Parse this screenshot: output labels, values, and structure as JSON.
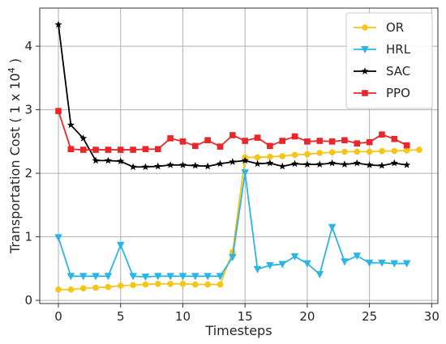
{
  "chart_data": {
    "type": "line",
    "xlabel": "Timesteps",
    "ylabel": "Transportation Cost ( 1 x 10^4 )",
    "ylabel_parts": {
      "main": "Transportation Cost ( 1 x 10",
      "exp": "4",
      "close": " )"
    },
    "xlim": [
      -1.5,
      30.5
    ],
    "ylim": [
      -0.05,
      4.6
    ],
    "xticks": [
      0,
      5,
      10,
      15,
      20,
      25,
      30
    ],
    "yticks": [
      0,
      1,
      2,
      3,
      4
    ],
    "grid": true,
    "legend_position": "top-right",
    "series": [
      {
        "name": "OR",
        "color": "#F5C518",
        "marker": "circle",
        "x": [
          0,
          1,
          2,
          3,
          4,
          5,
          6,
          7,
          8,
          9,
          10,
          11,
          12,
          13,
          14,
          15,
          16,
          17,
          18,
          19,
          20,
          21,
          22,
          23,
          24,
          25,
          26,
          27,
          28,
          29
        ],
        "y": [
          0.17,
          0.17,
          0.19,
          0.2,
          0.21,
          0.23,
          0.24,
          0.25,
          0.26,
          0.26,
          0.26,
          0.25,
          0.25,
          0.25,
          0.76,
          2.25,
          2.25,
          2.26,
          2.27,
          2.29,
          2.3,
          2.32,
          2.33,
          2.34,
          2.34,
          2.34,
          2.35,
          2.35,
          2.36,
          2.37
        ]
      },
      {
        "name": "HRL",
        "color": "#2BB5E6",
        "marker": "triangle-down",
        "x": [
          0,
          1,
          2,
          3,
          4,
          5,
          6,
          7,
          8,
          9,
          10,
          11,
          12,
          13,
          14,
          15,
          16,
          17,
          18,
          19,
          20,
          21,
          22,
          23,
          24,
          25,
          26,
          27,
          28
        ],
        "y": [
          0.99,
          0.38,
          0.38,
          0.38,
          0.38,
          0.87,
          0.38,
          0.37,
          0.38,
          0.38,
          0.38,
          0.38,
          0.38,
          0.38,
          0.68,
          2.01,
          0.49,
          0.55,
          0.57,
          0.69,
          0.58,
          0.41,
          1.15,
          0.61,
          0.7,
          0.59,
          0.59,
          0.58,
          0.58
        ]
      },
      {
        "name": "SAC",
        "color": "#000000",
        "marker": "star",
        "x": [
          0,
          1,
          2,
          3,
          4,
          5,
          6,
          7,
          8,
          9,
          10,
          11,
          12,
          13,
          14,
          15,
          16,
          17,
          18,
          19,
          20,
          21,
          22,
          23,
          24,
          25,
          26,
          27,
          28
        ],
        "y": [
          4.34,
          2.76,
          2.55,
          2.2,
          2.2,
          2.19,
          2.1,
          2.1,
          2.11,
          2.13,
          2.13,
          2.12,
          2.11,
          2.15,
          2.18,
          2.2,
          2.15,
          2.16,
          2.11,
          2.15,
          2.14,
          2.14,
          2.16,
          2.14,
          2.16,
          2.13,
          2.12,
          2.16,
          2.13
        ]
      },
      {
        "name": "PPO",
        "color": "#E8262B",
        "marker": "square",
        "x": [
          0,
          1,
          2,
          3,
          4,
          5,
          6,
          7,
          8,
          9,
          10,
          11,
          12,
          13,
          14,
          15,
          16,
          17,
          18,
          19,
          20,
          21,
          22,
          23,
          24,
          25,
          26,
          27,
          28
        ],
        "y": [
          2.98,
          2.38,
          2.37,
          2.37,
          2.37,
          2.37,
          2.37,
          2.38,
          2.38,
          2.55,
          2.5,
          2.43,
          2.52,
          2.42,
          2.6,
          2.51,
          2.56,
          2.43,
          2.51,
          2.58,
          2.5,
          2.51,
          2.5,
          2.52,
          2.47,
          2.49,
          2.61,
          2.54,
          2.44
        ]
      }
    ]
  }
}
